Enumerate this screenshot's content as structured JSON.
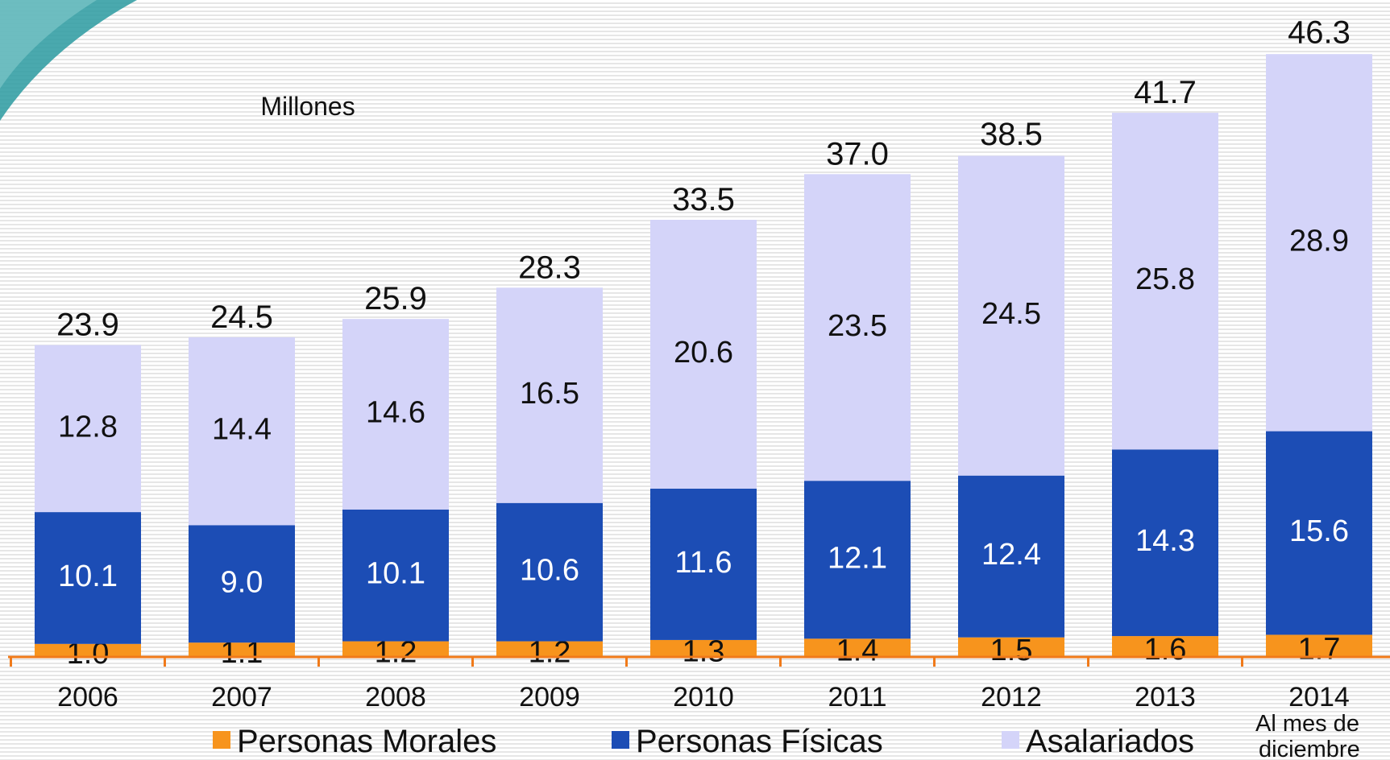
{
  "chart_data": {
    "type": "stacked_bar",
    "annotation": "Millones",
    "notes": [
      "Al mes de",
      "diciembre"
    ],
    "categories": [
      "2006",
      "2007",
      "2008",
      "2009",
      "2010",
      "2011",
      "2012",
      "2013",
      "2014"
    ],
    "series": [
      {
        "name": "Personas Morales",
        "color": "#f7941d",
        "values": [
          1.0,
          1.1,
          1.2,
          1.2,
          1.3,
          1.4,
          1.5,
          1.6,
          1.7
        ],
        "value_labels": [
          "1.0",
          "1.1",
          "1.2",
          "1.2",
          "1.3",
          "1.4",
          "1.5",
          "1.6",
          "1.7"
        ]
      },
      {
        "name": "Personas Físicas",
        "color": "#1c4db5",
        "values": [
          10.1,
          9.0,
          10.1,
          10.6,
          11.6,
          12.1,
          12.4,
          14.3,
          15.6
        ],
        "value_labels": [
          "10.1",
          "9.0",
          "10.1",
          "10.6",
          "11.6",
          "12.1",
          "12.4",
          "14.3",
          "15.6"
        ]
      },
      {
        "name": "Asalariados",
        "color": "#d4d4f9",
        "values": [
          12.8,
          14.4,
          14.6,
          16.5,
          20.6,
          23.5,
          24.5,
          25.8,
          28.9
        ],
        "value_labels": [
          "12.8",
          "14.4",
          "14.6",
          "16.5",
          "20.6",
          "23.5",
          "24.5",
          "25.8",
          "28.9"
        ]
      }
    ],
    "totals": [
      23.9,
      24.5,
      25.9,
      28.3,
      33.5,
      37.0,
      38.5,
      41.7,
      46.3
    ],
    "total_labels": [
      "23.9",
      "24.5",
      "25.9",
      "28.3",
      "33.5",
      "37.0",
      "38.5",
      "41.7",
      "46.3"
    ],
    "ylim": [
      0,
      48
    ],
    "axis_color": "#f07a1a"
  }
}
